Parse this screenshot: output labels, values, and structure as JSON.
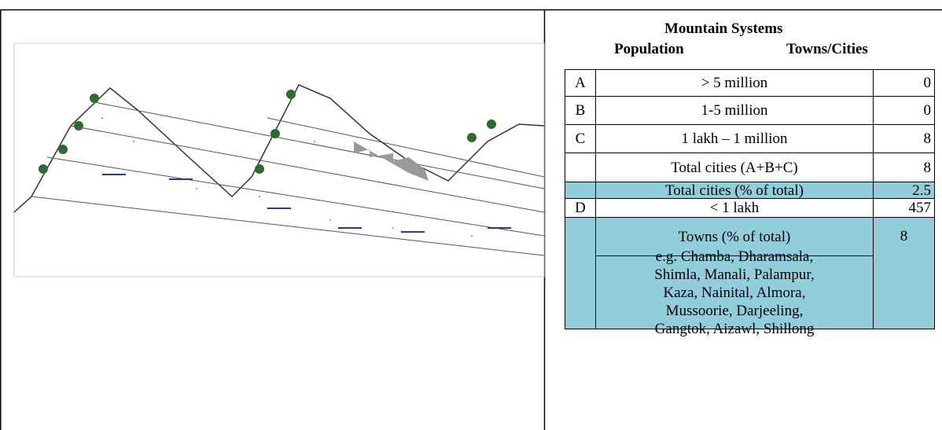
{
  "table": {
    "title": "Mountain Systems",
    "header": [
      "Population",
      "Towns/Cities"
    ],
    "rows": [
      {
        "label": "A",
        "population": "> 5 million",
        "count": 0
      },
      {
        "label": "B",
        "population": "1-5 million",
        "count": 0
      },
      {
        "label": "C",
        "population": "1 lakh – 1 million",
        "count": 8
      },
      {
        "population": "Total cities (A+B+C)",
        "count": 8
      },
      {
        "population": "Total cities (% of total)",
        "count": 2.5
      },
      {
        "label": "D",
        "population": "< 1 lakh",
        "count": 457
      },
      {
        "population": "Towns (% of total)",
        "count": 8,
        "example": [
          "e.g. Chamba, Dharamsala,",
          "Shimla, Manali, Palampur,",
          "Kaza, Nainital, Almora,",
          "Mussoorie, Darjeeling,",
          "Gangtok, Aizawl, Shillong"
        ]
      }
    ]
  }
}
